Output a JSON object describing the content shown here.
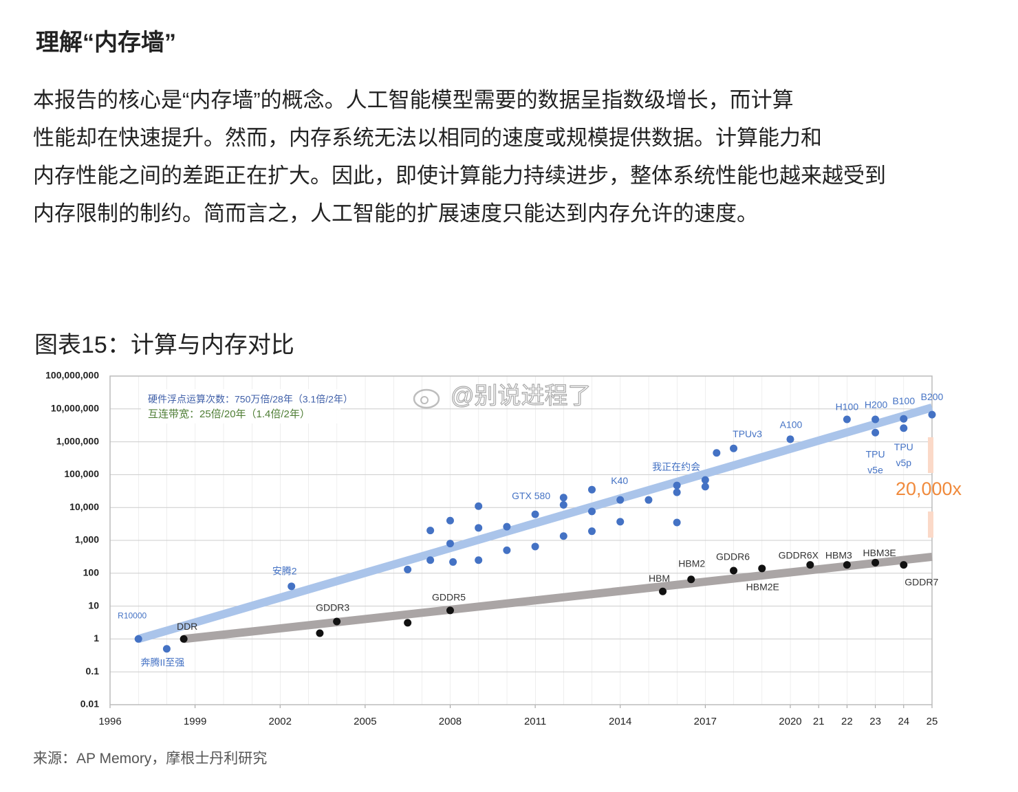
{
  "heading": "理解“内存墙”",
  "paragraph": [
    "本报告的核心是“内存墙”的概念。人工智能模型需要的数据呈指数级增长，而计算",
    "性能却在快速提升。然而，内存系统无法以相同的速度或规模提供数据。计算能力和",
    "内存性能之间的差距正在扩大。因此，即使计算能力持续进步，整体系统性能也越来越受到",
    "内存限制的制约。简而言之，人工智能的扩展速度只能达到内存允许的速度。"
  ],
  "figure_title": "图表15：计算与内存对比",
  "chart_data": {
    "type": "scatter",
    "ylog": true,
    "grid": true,
    "xlim": [
      1996,
      2025
    ],
    "ylim": [
      0.01,
      100000000
    ],
    "xticks": [
      1996,
      1999,
      2002,
      2005,
      2008,
      2011,
      2014,
      2017,
      2020,
      {
        "value": 2021,
        "label": "21"
      },
      {
        "value": 2022,
        "label": "22"
      },
      {
        "value": 2023,
        "label": "23"
      },
      {
        "value": 2024,
        "label": "24"
      },
      {
        "value": 2025,
        "label": "25"
      }
    ],
    "yticks": [
      {
        "value": 100000000,
        "label": "100,000,000"
      },
      {
        "value": 10000000,
        "label": "10,000,000"
      },
      {
        "value": 1000000,
        "label": "1,000,000"
      },
      {
        "value": 100000,
        "label": "100,000"
      },
      {
        "value": 10000,
        "label": "10,000"
      },
      {
        "value": 1000,
        "label": "1,000"
      },
      100,
      10,
      1,
      0.1,
      0.01
    ],
    "series": [
      {
        "name": "硬件浮点运算次数：750万倍/28年（3.1倍/2年）",
        "color": "#4472c4",
        "legend_color": "#3f5fa8",
        "x": [
          1997,
          1998,
          2002.4,
          2006.5,
          2007.3,
          2007.3,
          2008,
          2008,
          2008.1,
          2009,
          2009,
          2009,
          2010,
          2010,
          2011,
          2011,
          2012,
          2012,
          2012,
          2013,
          2013,
          2013,
          2014,
          2014,
          2015,
          2016,
          2016,
          2016,
          2017,
          2017,
          2017.4,
          2018,
          2020,
          2022,
          2023,
          2023,
          2024,
          2024,
          2025
        ],
        "values": [
          1,
          0.5,
          40,
          130,
          2000,
          250,
          4000,
          800,
          220,
          11000,
          2400,
          250,
          2600,
          500,
          6200,
          650,
          20000,
          12000,
          1350,
          35000,
          7600,
          1900,
          17000,
          3700,
          17000,
          47000,
          29000,
          3500,
          69000,
          43000,
          460000,
          630000,
          1200000,
          4800000,
          4800000,
          1900000,
          5000000,
          2600000,
          6700000
        ],
        "labels": [
          "R10000",
          "奔腾II至强",
          "安腾2",
          null,
          null,
          null,
          null,
          null,
          null,
          null,
          null,
          null,
          null,
          null,
          "GTX 580",
          null,
          null,
          null,
          null,
          null,
          null,
          null,
          "K40",
          null,
          null,
          "我正在约会",
          null,
          null,
          null,
          null,
          null,
          "TPUv3",
          "A100",
          "H100",
          "H200",
          "TPU v5e",
          "B100",
          "TPU v5p",
          "B200"
        ],
        "trend": {
          "x": [
            1997,
            2025
          ],
          "values": [
            1,
            11000000
          ],
          "color": "#aac4ea"
        }
      },
      {
        "name": "互连带宽：25倍/20年（1.4倍/2年）",
        "color": "#111111",
        "legend_color": "#4e7d34",
        "x": [
          1998.6,
          2003.4,
          2004,
          2006.5,
          2008,
          2015.5,
          2016.5,
          2018,
          2019,
          2020.7,
          2022,
          2023,
          2024
        ],
        "values": [
          1,
          1.5,
          3.4,
          3.1,
          7.4,
          28,
          65,
          120,
          140,
          180,
          180,
          210,
          180
        ],
        "labels": [
          "DDR",
          null,
          "GDDR3",
          null,
          "GDDR5",
          "HBM",
          "HBM2",
          "GDDR6",
          "HBM2E",
          "GDDR6X",
          "HBM3",
          "HBM3E",
          "GDDR7"
        ],
        "trend": {
          "x": [
            1998.6,
            2025
          ],
          "values": [
            1,
            316
          ],
          "color": "#aaa5a5"
        }
      }
    ],
    "annotation": {
      "text": "20,000x",
      "color": "#f08a3c"
    },
    "watermark": "@别说进程了"
  },
  "source": "来源：AP Memory，摩根士丹利研究"
}
